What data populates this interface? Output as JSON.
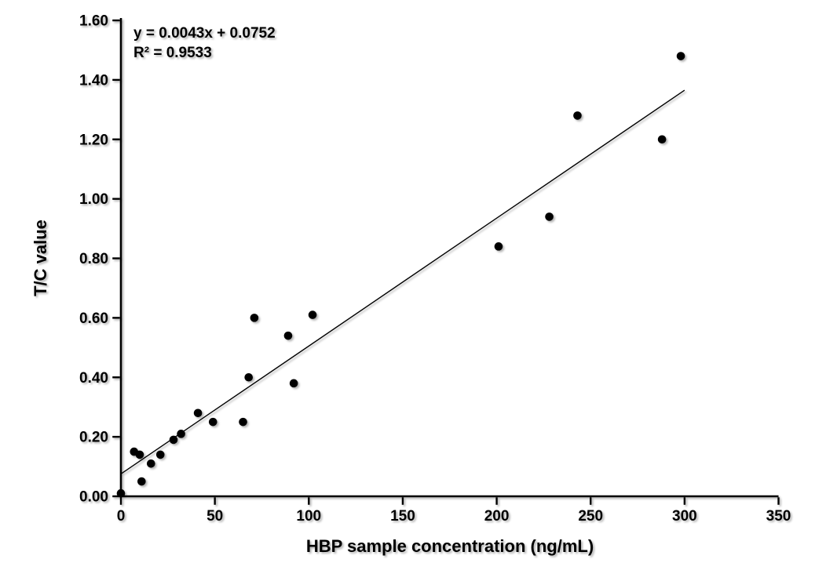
{
  "chart_data": {
    "type": "scatter",
    "title": "",
    "xlabel": "HBP sample concentration (ng/mL)",
    "ylabel": "T/C value",
    "xlim": [
      0,
      350
    ],
    "ylim": [
      0,
      1.6
    ],
    "x_ticks": [
      "0",
      "50",
      "100",
      "150",
      "200",
      "250",
      "300",
      "350"
    ],
    "y_ticks": [
      "0.00",
      "0.20",
      "0.40",
      "0.60",
      "0.80",
      "1.00",
      "1.20",
      "1.40",
      "1.60"
    ],
    "grid": false,
    "legend": null,
    "annotation": {
      "equation": "y = 0.0043x + 0.0752",
      "r_squared": "R² = 0.9533"
    },
    "trendline": {
      "slope": 0.0043,
      "intercept": 0.0752,
      "x_start": 0,
      "x_end": 300
    },
    "points": [
      {
        "x": 0,
        "y": 0.01
      },
      {
        "x": 7,
        "y": 0.15
      },
      {
        "x": 10,
        "y": 0.14
      },
      {
        "x": 11,
        "y": 0.05
      },
      {
        "x": 16,
        "y": 0.11
      },
      {
        "x": 21,
        "y": 0.14
      },
      {
        "x": 28,
        "y": 0.19
      },
      {
        "x": 32,
        "y": 0.21
      },
      {
        "x": 41,
        "y": 0.28
      },
      {
        "x": 49,
        "y": 0.25
      },
      {
        "x": 65,
        "y": 0.25
      },
      {
        "x": 68,
        "y": 0.4
      },
      {
        "x": 71,
        "y": 0.6
      },
      {
        "x": 89,
        "y": 0.54
      },
      {
        "x": 92,
        "y": 0.38
      },
      {
        "x": 102,
        "y": 0.61
      },
      {
        "x": 201,
        "y": 0.84
      },
      {
        "x": 228,
        "y": 0.94
      },
      {
        "x": 243,
        "y": 1.28
      },
      {
        "x": 288,
        "y": 1.2
      },
      {
        "x": 298,
        "y": 1.48
      }
    ],
    "colors": {
      "point": "#000000",
      "line": "#000000",
      "axis": "#000000",
      "text": "#000000",
      "background": "#ffffff"
    }
  }
}
